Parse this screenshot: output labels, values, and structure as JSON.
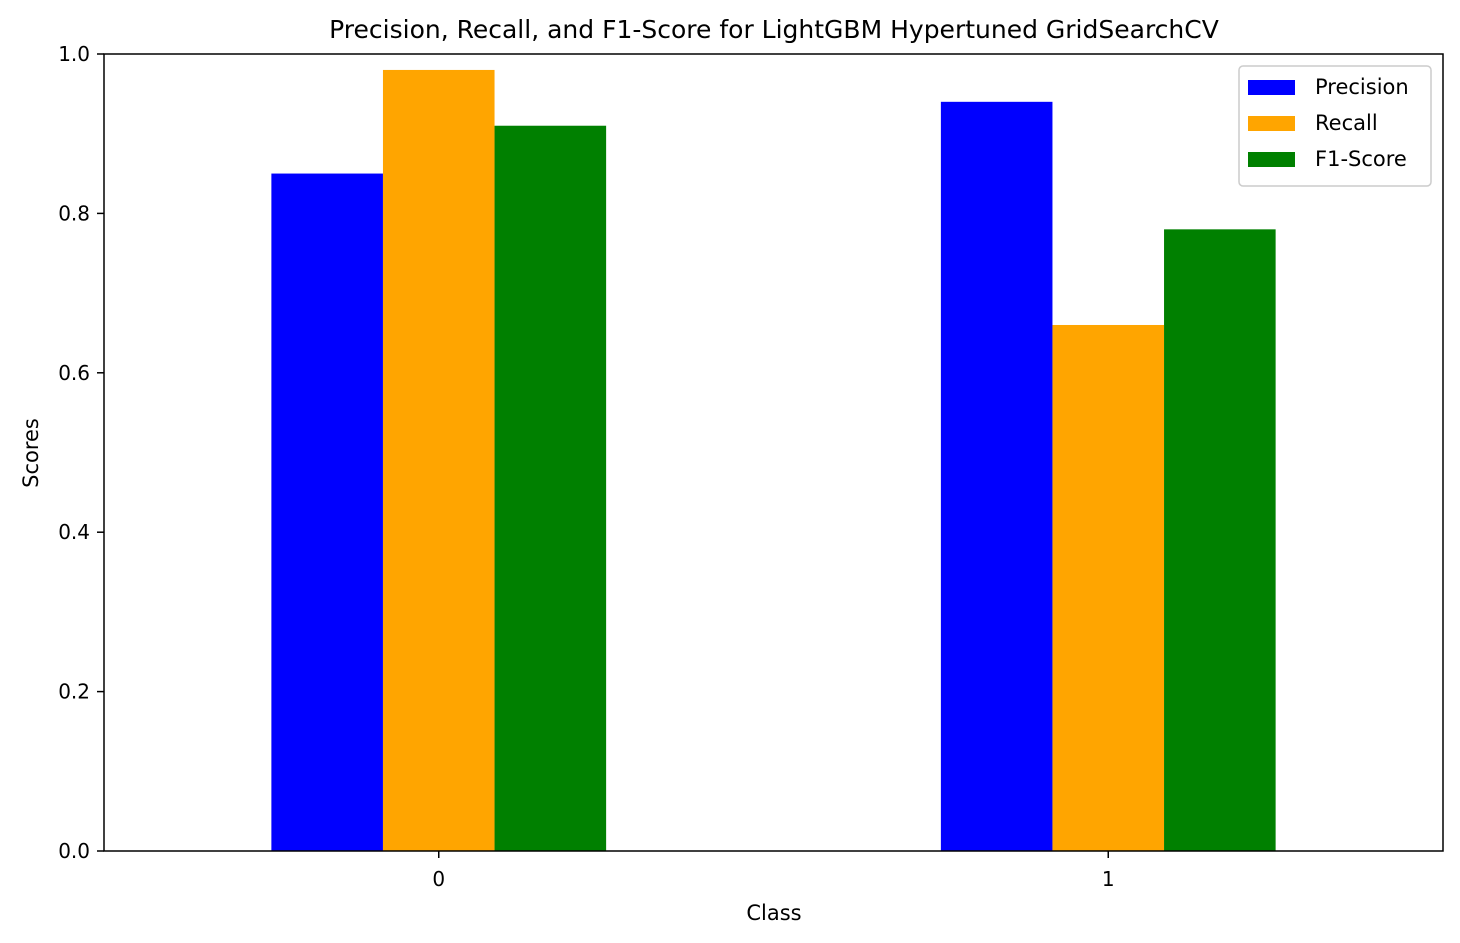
{
  "chart_data": {
    "type": "bar",
    "title": "Precision, Recall, and F1-Score for LightGBM Hypertuned GridSearchCV",
    "xlabel": "Class",
    "ylabel": "Scores",
    "categories": [
      "0",
      "1"
    ],
    "series": [
      {
        "name": "Precision",
        "color": "#0000ff",
        "values": [
          0.85,
          0.94
        ]
      },
      {
        "name": "Recall",
        "color": "#ffa500",
        "values": [
          0.98,
          0.66
        ]
      },
      {
        "name": "F1-Score",
        "color": "#008000",
        "values": [
          0.91,
          0.78
        ]
      }
    ],
    "ylim": [
      0,
      1.0
    ],
    "yticks": [
      "0.0",
      "0.2",
      "0.4",
      "0.6",
      "0.8",
      "1.0"
    ],
    "grid": false,
    "legend_position": "top-right"
  }
}
